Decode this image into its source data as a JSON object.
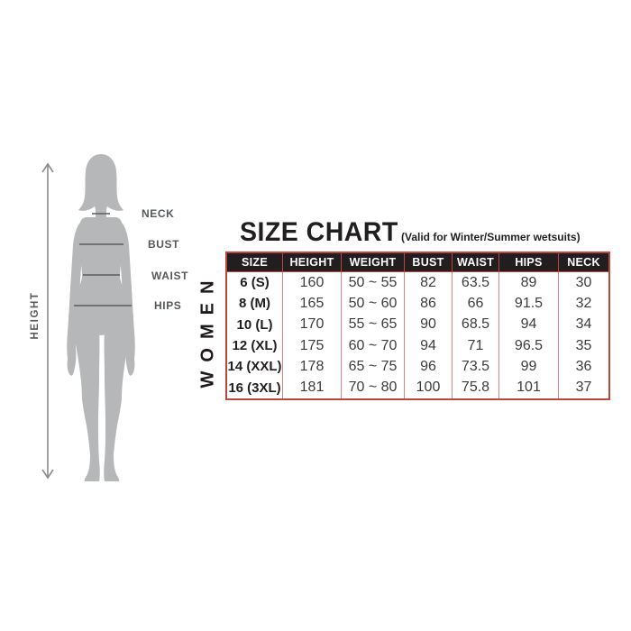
{
  "header": {
    "title": "SIZE CHART",
    "subtitle": "(Valid for Winter/Summer wetsuits)"
  },
  "section_label": "WOMEN",
  "figure": {
    "height_label": "HEIGHT",
    "labels": [
      "NECK",
      "BUST",
      "WAIST",
      "HIPS"
    ]
  },
  "table": {
    "columns": [
      "SIZE",
      "HEIGHT",
      "WEIGHT",
      "BUST",
      "WAIST",
      "HIPS",
      "NECK"
    ],
    "rows": [
      [
        "6 (S)",
        "160",
        "50 ~ 55",
        "82",
        "63.5",
        "89",
        "30"
      ],
      [
        "8 (M)",
        "165",
        "50 ~ 60",
        "86",
        "66",
        "91.5",
        "32"
      ],
      [
        "10 (L)",
        "170",
        "55 ~ 65",
        "90",
        "68.5",
        "94",
        "34"
      ],
      [
        "12 (XL)",
        "175",
        "60 ~ 70",
        "94",
        "71",
        "96.5",
        "35"
      ],
      [
        "14 (XXL)",
        "178",
        "65 ~ 75",
        "96",
        "73.5",
        "99",
        "36"
      ],
      [
        "16 (3XL)",
        "181",
        "70 ~ 80",
        "100",
        "75.8",
        "101",
        "37"
      ]
    ]
  },
  "colors": {
    "table_border": "#b9473e",
    "table_inner_line": "#da867d",
    "header_bg": "#221e1f",
    "header_text": "#ffffff",
    "silhouette": "#b5b7b9",
    "measure_line": "#5a5b5e",
    "label_text": "#56585b",
    "arrow": "#8a8c8f",
    "title_text": "#221e1f"
  }
}
